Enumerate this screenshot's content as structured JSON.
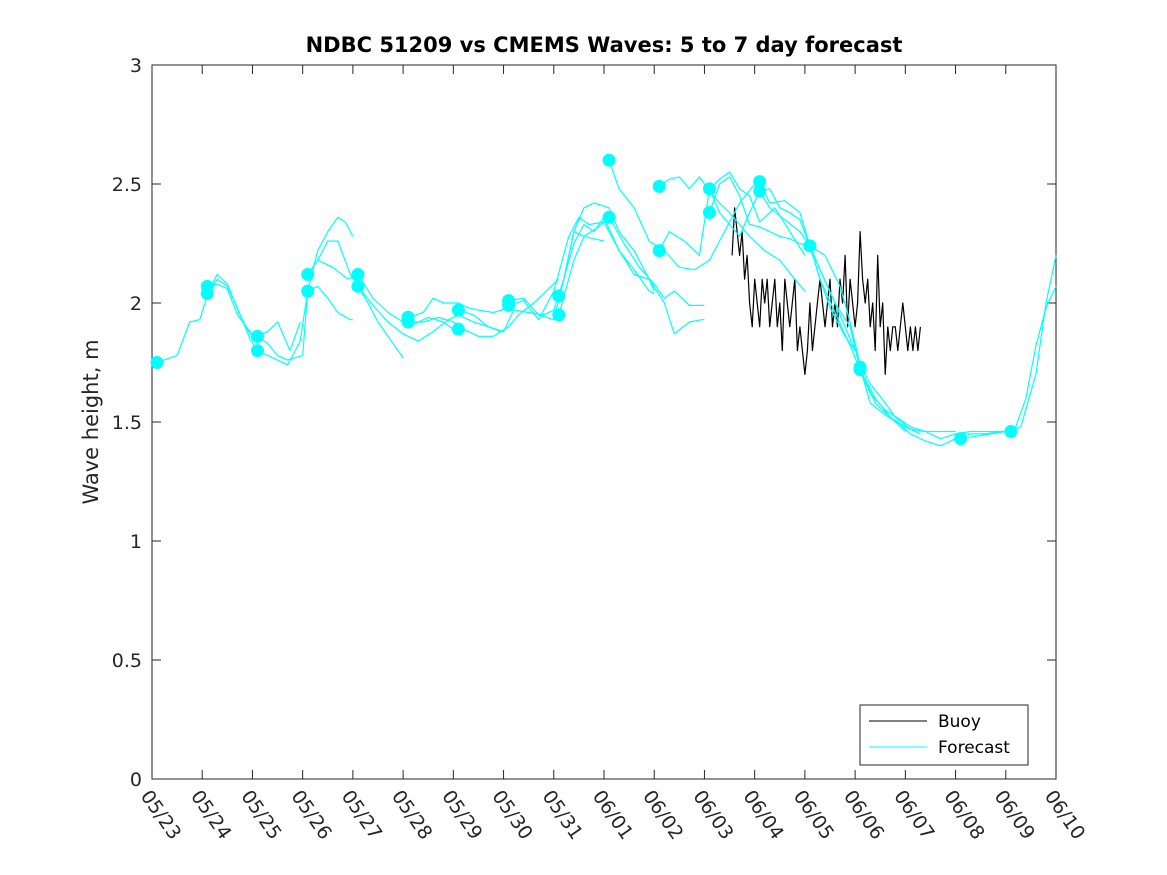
{
  "chart_data": {
    "type": "line",
    "title": "NDBC 51209 vs CMEMS Waves: 5 to 7 day forecast",
    "xlabel": "",
    "ylabel": "Wave height, m",
    "xlim": [
      "05/23",
      "06/10"
    ],
    "ylim": [
      0,
      3
    ],
    "yticks": [
      0,
      0.5,
      1,
      1.5,
      2,
      2.5,
      3
    ],
    "xtick_labels": [
      "05/23",
      "05/24",
      "05/25",
      "05/26",
      "05/27",
      "05/28",
      "05/29",
      "05/30",
      "05/31",
      "06/01",
      "06/02",
      "06/03",
      "06/04",
      "06/05",
      "06/06",
      "06/07",
      "06/08",
      "06/09",
      "06/10"
    ],
    "x_units": "days from 05/23",
    "grid": false,
    "legend_position": "bottom-right",
    "legend": [
      {
        "label": "Buoy",
        "color": "#000000"
      },
      {
        "label": "Forecast",
        "color": "#00FFFF"
      }
    ],
    "series": [
      {
        "name": "Buoy",
        "color": "#000000",
        "x": [
          11.55,
          11.6,
          11.65,
          11.7,
          11.75,
          11.8,
          11.85,
          11.9,
          11.95,
          12.0,
          12.05,
          12.1,
          12.15,
          12.2,
          12.25,
          12.3,
          12.35,
          12.4,
          12.45,
          12.5,
          12.55,
          12.6,
          12.65,
          12.7,
          12.75,
          12.8,
          12.85,
          12.9,
          12.95,
          13.0,
          13.05,
          13.1,
          13.15,
          13.2,
          13.25,
          13.3,
          13.35,
          13.4,
          13.45,
          13.5,
          13.55,
          13.6,
          13.65,
          13.7,
          13.75,
          13.8,
          13.85,
          13.9,
          13.95,
          14.0,
          14.05,
          14.1,
          14.15,
          14.2,
          14.25,
          14.3,
          14.35,
          14.4,
          14.45,
          14.5,
          14.55,
          14.6,
          14.65,
          14.7,
          14.75,
          14.8,
          14.85,
          14.9,
          14.95,
          15.0,
          15.05,
          15.1,
          15.15,
          15.2,
          15.25,
          15.3
        ],
        "y": [
          2.2,
          2.4,
          2.3,
          2.2,
          2.3,
          2.1,
          2.2,
          2.0,
          1.9,
          2.1,
          2.0,
          1.9,
          2.1,
          2.0,
          2.1,
          1.9,
          2.0,
          2.1,
          1.9,
          2.0,
          1.8,
          2.1,
          2.0,
          1.9,
          2.0,
          2.1,
          1.8,
          1.9,
          1.8,
          1.7,
          1.8,
          2.0,
          1.8,
          1.9,
          2.0,
          2.1,
          2.0,
          1.9,
          2.0,
          2.1,
          1.9,
          2.0,
          1.9,
          2.1,
          2.0,
          2.2,
          1.9,
          2.1,
          2.0,
          1.9,
          2.0,
          2.3,
          2.1,
          2.0,
          2.1,
          1.9,
          2.0,
          1.8,
          2.2,
          1.9,
          2.0,
          1.7,
          1.9,
          1.8,
          1.9,
          1.9,
          1.8,
          1.9,
          2.0,
          1.9,
          1.8,
          1.9,
          1.8,
          1.9,
          1.8,
          1.9
        ]
      },
      {
        "name": "Forecast",
        "color": "#00FFFF",
        "x": [
          0.1,
          0.5,
          0.75,
          0.95,
          1.1,
          1.3,
          1.5,
          1.7,
          1.95,
          2.1
        ],
        "y": [
          1.75,
          1.78,
          1.92,
          1.93,
          2.03,
          2.1,
          2.07,
          1.98,
          1.85,
          1.8
        ]
      },
      {
        "name": "Forecast",
        "color": "#00FFFF",
        "x": [
          1.1,
          1.3,
          1.5,
          1.7,
          1.95,
          2.1,
          2.3,
          2.5,
          2.7,
          3.0,
          3.1
        ],
        "y": [
          2.07,
          2.08,
          2.06,
          1.95,
          1.88,
          1.86,
          1.83,
          1.78,
          1.76,
          1.78,
          2.05
        ]
      },
      {
        "name": "Forecast",
        "color": "#00FFFF",
        "x": [
          1.1,
          1.3,
          1.5,
          1.75,
          1.95,
          2.1,
          2.3,
          2.5,
          2.75,
          2.95
        ],
        "y": [
          2.04,
          2.12,
          2.08,
          1.95,
          1.87,
          1.86,
          1.88,
          1.92,
          1.8,
          1.92
        ]
      },
      {
        "name": "Forecast",
        "color": "#00FFFF",
        "x": [
          2.1,
          2.4,
          2.7,
          2.95,
          3.1,
          3.3,
          3.5,
          3.7,
          3.95,
          4.0
        ],
        "y": [
          1.8,
          1.77,
          1.74,
          1.84,
          2.05,
          2.07,
          2.02,
          1.96,
          1.93,
          1.93
        ]
      },
      {
        "name": "Forecast",
        "color": "#00FFFF",
        "x": [
          3.1,
          3.3,
          3.5,
          3.7,
          3.95,
          4.1,
          4.3,
          4.5,
          4.7,
          4.9,
          5.0
        ],
        "y": [
          2.12,
          2.18,
          2.26,
          2.26,
          2.12,
          2.07,
          2.0,
          1.92,
          1.86,
          1.8,
          1.77
        ]
      },
      {
        "name": "Forecast",
        "color": "#00FFFF",
        "x": [
          3.1,
          3.3,
          3.5,
          3.7,
          3.85,
          4.0
        ],
        "y": [
          2.05,
          2.22,
          2.3,
          2.36,
          2.34,
          2.28
        ]
      },
      {
        "name": "Forecast",
        "color": "#00FFFF",
        "x": [
          3.1,
          3.3,
          3.6,
          3.9,
          4.1,
          4.4,
          4.7,
          5.0,
          5.2,
          5.5,
          5.8,
          6.0
        ],
        "y": [
          2.12,
          2.18,
          2.15,
          2.1,
          2.12,
          2.02,
          1.96,
          1.92,
          1.91,
          1.94,
          1.92,
          1.89
        ]
      },
      {
        "name": "Forecast",
        "color": "#00FFFF",
        "x": [
          4.1,
          4.4,
          4.7,
          5.0,
          5.3,
          5.6,
          5.9,
          6.1,
          6.4,
          6.7,
          6.95
        ],
        "y": [
          2.07,
          1.99,
          1.92,
          1.87,
          1.84,
          1.88,
          1.93,
          1.95,
          1.92,
          1.9,
          1.88
        ]
      },
      {
        "name": "Forecast",
        "color": "#00FFFF",
        "x": [
          5.1,
          5.4,
          5.6,
          5.8,
          6.1,
          6.3,
          6.5,
          6.8,
          7.1
        ],
        "y": [
          1.94,
          1.96,
          2.02,
          2.0,
          2.0,
          1.98,
          1.97,
          1.96,
          1.98
        ]
      },
      {
        "name": "Forecast",
        "color": "#00FFFF",
        "x": [
          5.1,
          5.4,
          5.7,
          6.0,
          6.2,
          6.5,
          6.8,
          7.1,
          7.3,
          7.6,
          7.9,
          8.1
        ],
        "y": [
          1.92,
          1.92,
          1.94,
          1.92,
          1.89,
          1.86,
          1.86,
          1.9,
          1.95,
          2.0,
          2.06,
          2.1
        ]
      },
      {
        "name": "Forecast",
        "color": "#00FFFF",
        "x": [
          6.1,
          6.4,
          6.7,
          7.0,
          7.2,
          7.5,
          7.8,
          8.0,
          8.2,
          8.4,
          8.6,
          9.0
        ],
        "y": [
          1.97,
          1.95,
          1.9,
          1.88,
          1.97,
          1.96,
          1.95,
          1.97,
          2.1,
          2.3,
          2.28,
          2.26
        ]
      },
      {
        "name": "Forecast",
        "color": "#00FFFF",
        "x": [
          7.1,
          7.4,
          7.7,
          8.0,
          8.2,
          8.4,
          8.6,
          8.8,
          9.1,
          9.3,
          9.6,
          9.9,
          10.0
        ],
        "y": [
          2.01,
          2.02,
          1.95,
          1.93,
          2.1,
          2.3,
          2.4,
          2.42,
          2.4,
          2.3,
          2.22,
          2.1,
          2.05
        ]
      },
      {
        "name": "Forecast",
        "color": "#00FFFF",
        "x": [
          7.1,
          7.4,
          7.7,
          8.0,
          8.3,
          8.5,
          8.7,
          9.0,
          9.3,
          9.6,
          9.9,
          10.0
        ],
        "y": [
          1.99,
          2.01,
          1.93,
          2.05,
          2.28,
          2.36,
          2.33,
          2.34,
          2.22,
          2.14,
          2.05,
          2.04
        ]
      },
      {
        "name": "Forecast",
        "color": "#00FFFF",
        "x": [
          8.1,
          8.4,
          8.6,
          8.8,
          9.0,
          9.3,
          9.6,
          9.9,
          10.2,
          10.4,
          10.7,
          10.95,
          11.0
        ],
        "y": [
          2.03,
          2.25,
          2.33,
          2.3,
          2.36,
          2.22,
          2.12,
          2.1,
          2.0,
          1.87,
          1.92,
          1.93,
          1.93
        ]
      },
      {
        "name": "Forecast",
        "color": "#00FFFF",
        "x": [
          8.1,
          8.4,
          8.6,
          8.9,
          9.1,
          9.4,
          9.7,
          10.0,
          10.2,
          10.4,
          10.7,
          11.0
        ],
        "y": [
          1.95,
          2.18,
          2.28,
          2.32,
          2.36,
          2.25,
          2.15,
          2.08,
          2.02,
          2.05,
          1.99,
          1.99
        ]
      },
      {
        "name": "Forecast",
        "color": "#00FFFF",
        "x": [
          9.1,
          9.3,
          9.6,
          9.9,
          10.2,
          10.5,
          10.8,
          11.1,
          11.4,
          11.7,
          12.0
        ],
        "y": [
          2.6,
          2.48,
          2.4,
          2.26,
          2.22,
          2.15,
          2.14,
          2.18,
          2.3,
          2.42,
          2.5
        ]
      },
      {
        "name": "Forecast",
        "color": "#00FFFF",
        "x": [
          10.1,
          10.3,
          10.5,
          10.7,
          10.9,
          11.1,
          11.3,
          11.5,
          11.7,
          11.9,
          12.2,
          12.5,
          12.8,
          13.0
        ],
        "y": [
          2.49,
          2.52,
          2.53,
          2.48,
          2.53,
          2.47,
          2.42,
          2.38,
          2.33,
          2.28,
          2.22,
          2.18,
          2.1,
          2.05
        ]
      },
      {
        "name": "Forecast",
        "color": "#00FFFF",
        "x": [
          10.1,
          10.3,
          10.6,
          10.9,
          11.1,
          11.3,
          11.5,
          11.7,
          11.9,
          12.1,
          12.4,
          12.7,
          13.0
        ],
        "y": [
          2.22,
          2.3,
          2.26,
          2.2,
          2.48,
          2.52,
          2.55,
          2.48,
          2.45,
          2.34,
          2.4,
          2.3,
          2.2
        ]
      },
      {
        "name": "Forecast",
        "color": "#00FFFF",
        "x": [
          11.1,
          11.3,
          11.5,
          11.7,
          11.9,
          12.1,
          12.3,
          12.5,
          12.7,
          12.9,
          13.1,
          13.3,
          13.6,
          13.9,
          14.0
        ],
        "y": [
          2.48,
          2.38,
          2.33,
          2.28,
          2.38,
          2.47,
          2.48,
          2.4,
          2.38,
          2.35,
          2.24,
          2.14,
          2.0,
          1.85,
          1.8
        ]
      },
      {
        "name": "Forecast",
        "color": "#00FFFF",
        "x": [
          11.1,
          11.3,
          11.5,
          11.7,
          11.9,
          12.1,
          12.3,
          12.5,
          12.7,
          12.9,
          13.1,
          13.3,
          13.5,
          13.8,
          14.0
        ],
        "y": [
          2.38,
          2.5,
          2.53,
          2.45,
          2.33,
          2.32,
          2.3,
          2.28,
          2.27,
          2.25,
          2.24,
          2.1,
          1.98,
          1.86,
          1.8
        ]
      },
      {
        "name": "Forecast",
        "color": "#00FFFF",
        "x": [
          12.1,
          12.3,
          12.6,
          12.9,
          13.1,
          13.3,
          13.6,
          13.9,
          14.1,
          14.4,
          14.7,
          15.0
        ],
        "y": [
          2.51,
          2.42,
          2.43,
          2.38,
          2.24,
          2.1,
          1.96,
          1.82,
          1.72,
          1.6,
          1.52,
          1.46
        ]
      },
      {
        "name": "Forecast",
        "color": "#00FFFF",
        "x": [
          12.1,
          12.3,
          12.6,
          12.9,
          13.1,
          13.3,
          13.6,
          13.9,
          14.1,
          14.4,
          14.7,
          15.0,
          15.3
        ],
        "y": [
          2.47,
          2.4,
          2.35,
          2.3,
          2.24,
          2.14,
          2.0,
          1.9,
          1.72,
          1.58,
          1.52,
          1.48,
          1.45
        ]
      },
      {
        "name": "Forecast",
        "color": "#00FFFF",
        "x": [
          13.1,
          13.4,
          13.7,
          13.9,
          14.1,
          14.3,
          14.6,
          14.8,
          15.1,
          15.4,
          15.6,
          15.8,
          16.0
        ],
        "y": [
          2.24,
          2.2,
          2.07,
          1.92,
          1.74,
          1.66,
          1.58,
          1.52,
          1.47,
          1.46,
          1.46,
          1.46,
          1.46
        ]
      },
      {
        "name": "Forecast",
        "color": "#00FFFF",
        "x": [
          14.1,
          14.3,
          14.6,
          14.9,
          15.1,
          15.4,
          15.7,
          16.0,
          16.3,
          16.6,
          16.9,
          17.1
        ],
        "y": [
          1.72,
          1.62,
          1.55,
          1.51,
          1.48,
          1.46,
          1.43,
          1.45,
          1.46,
          1.46,
          1.46,
          1.46
        ]
      },
      {
        "name": "Forecast",
        "color": "#00FFFF",
        "x": [
          14.1,
          14.3,
          14.6,
          14.9,
          15.1,
          15.4,
          15.7,
          16.0,
          16.3,
          16.6,
          16.9,
          17.1,
          17.3,
          17.6,
          17.8,
          18.0
        ],
        "y": [
          1.73,
          1.58,
          1.53,
          1.49,
          1.45,
          1.42,
          1.4,
          1.43,
          1.45,
          1.45,
          1.46,
          1.46,
          1.48,
          1.7,
          2.0,
          2.2
        ]
      },
      {
        "name": "Forecast",
        "color": "#00FFFF",
        "x": [
          16.1,
          16.4,
          16.7,
          17.0,
          17.2,
          17.4,
          17.6,
          17.8,
          18.0
        ],
        "y": [
          1.43,
          1.44,
          1.45,
          1.46,
          1.48,
          1.6,
          1.82,
          1.98,
          2.07
        ]
      }
    ],
    "markers": {
      "color": "#00FFFF",
      "points": [
        [
          0.1,
          1.75
        ],
        [
          1.1,
          2.07
        ],
        [
          1.1,
          2.04
        ],
        [
          2.1,
          1.86
        ],
        [
          2.1,
          1.8
        ],
        [
          3.1,
          2.12
        ],
        [
          3.1,
          2.05
        ],
        [
          4.1,
          2.12
        ],
        [
          4.1,
          2.07
        ],
        [
          5.1,
          1.94
        ],
        [
          5.1,
          1.92
        ],
        [
          6.1,
          1.97
        ],
        [
          6.1,
          1.89
        ],
        [
          7.1,
          2.01
        ],
        [
          7.1,
          1.99
        ],
        [
          8.1,
          2.03
        ],
        [
          8.1,
          1.95
        ],
        [
          9.1,
          2.6
        ],
        [
          9.1,
          2.36
        ],
        [
          10.1,
          2.49
        ],
        [
          10.1,
          2.22
        ],
        [
          11.1,
          2.48
        ],
        [
          11.1,
          2.38
        ],
        [
          12.1,
          2.51
        ],
        [
          12.1,
          2.47
        ],
        [
          13.1,
          2.24
        ],
        [
          14.1,
          1.73
        ],
        [
          14.1,
          1.72
        ],
        [
          16.1,
          1.43
        ],
        [
          17.1,
          1.46
        ]
      ]
    }
  }
}
